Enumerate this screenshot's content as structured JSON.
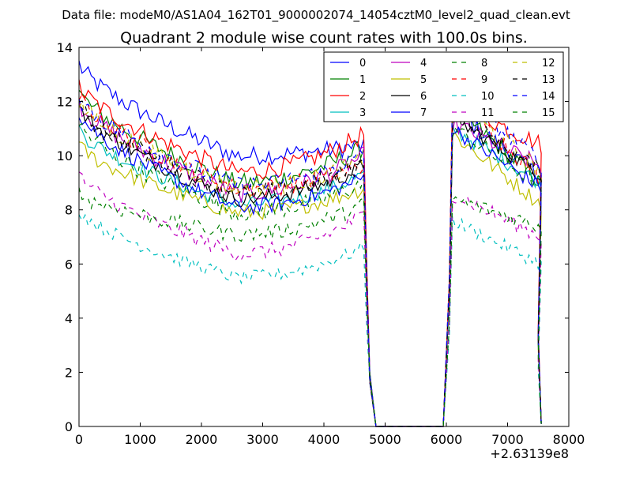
{
  "chart_data": {
    "type": "line",
    "suptitle": "Data file: modeM0/AS1A04_162T01_9000002074_14054cztM0_level2_quad_clean.evt",
    "title": "Quadrant 2 module wise count rates with 100.0s bins.",
    "xlabel": "",
    "ylabel": "",
    "x_offset_label": "+2.63139e8",
    "xlim": [
      0,
      8000
    ],
    "ylim": [
      0,
      14
    ],
    "xticks": [
      0,
      1000,
      2000,
      3000,
      4000,
      5000,
      6000,
      7000,
      8000
    ],
    "yticks": [
      0,
      2,
      4,
      6,
      8,
      10,
      12,
      14
    ],
    "x_tick_labels": [
      "0",
      "1000",
      "2000",
      "3000",
      "4000",
      "5000",
      "6000",
      "7000",
      "8000"
    ],
    "y_tick_labels": [
      "0",
      "2",
      "4",
      "6",
      "8",
      "10",
      "12",
      "14"
    ],
    "grid": false,
    "legend_position": "top-right",
    "legend_columns": 4,
    "bin_size_s": 100,
    "segments": [
      {
        "x_start": 0,
        "x_end": 4650,
        "bins": 47
      },
      {
        "x_start": 4750,
        "x_end": 4850,
        "bins": 2,
        "note": "drop to zero"
      },
      {
        "x_start": 4950,
        "x_end": 5950,
        "bins": 11,
        "note": "zero gap"
      },
      {
        "x_start": 6050,
        "x_end": 7550,
        "bins": 16
      }
    ],
    "series": [
      {
        "name": "0",
        "color": "#0000ff",
        "linestyle": "solid",
        "start": 13.4,
        "mid": 10.0,
        "end": 10.4,
        "seg2_start": 11.7,
        "seg2_end": 9.2,
        "noise": 0.35
      },
      {
        "name": "1",
        "color": "#008000",
        "linestyle": "solid",
        "start": 12.4,
        "mid": 9.0,
        "end": 10.3,
        "seg2_start": 11.8,
        "seg2_end": 9.0,
        "noise": 0.35
      },
      {
        "name": "2",
        "color": "#ff0000",
        "linestyle": "solid",
        "start": 12.6,
        "mid": 9.4,
        "end": 10.8,
        "seg2_start": 12.0,
        "seg2_end": 10.4,
        "noise": 0.35
      },
      {
        "name": "3",
        "color": "#00bfbf",
        "linestyle": "solid",
        "start": 11.0,
        "mid": 8.2,
        "end": 9.3,
        "seg2_start": 11.0,
        "seg2_end": 9.0,
        "noise": 0.3
      },
      {
        "name": "4",
        "color": "#bf00bf",
        "linestyle": "solid",
        "start": 12.0,
        "mid": 8.6,
        "end": 10.0,
        "seg2_start": 11.2,
        "seg2_end": 9.6,
        "noise": 0.35
      },
      {
        "name": "5",
        "color": "#bfbf00",
        "linestyle": "solid",
        "start": 10.4,
        "mid": 7.9,
        "end": 8.8,
        "seg2_start": 10.8,
        "seg2_end": 8.2,
        "noise": 0.3
      },
      {
        "name": "6",
        "color": "#000000",
        "linestyle": "solid",
        "start": 11.8,
        "mid": 8.4,
        "end": 9.6,
        "seg2_start": 11.4,
        "seg2_end": 9.3,
        "noise": 0.3
      },
      {
        "name": "7",
        "color": "#0000ff",
        "linestyle": "solid",
        "start": 11.6,
        "mid": 8.1,
        "end": 9.2,
        "seg2_start": 11.0,
        "seg2_end": 8.8,
        "noise": 0.3
      },
      {
        "name": "8",
        "color": "#008000",
        "linestyle": "dashed",
        "start": 11.2,
        "mid": 7.9,
        "end": 9.0,
        "seg2_start": 11.0,
        "seg2_end": 8.9,
        "noise": 0.35
      },
      {
        "name": "9",
        "color": "#ff0000",
        "linestyle": "dashed",
        "start": 12.2,
        "mid": 8.8,
        "end": 9.6,
        "seg2_start": 12.2,
        "seg2_end": 9.2,
        "noise": 0.35
      },
      {
        "name": "10",
        "color": "#00bfbf",
        "linestyle": "dashed",
        "start": 8.0,
        "mid": 5.5,
        "end": 6.6,
        "seg2_start": 7.6,
        "seg2_end": 6.0,
        "noise": 0.25
      },
      {
        "name": "11",
        "color": "#bf00bf",
        "linestyle": "dashed",
        "start": 9.3,
        "mid": 6.4,
        "end": 7.8,
        "seg2_start": 8.6,
        "seg2_end": 7.0,
        "noise": 0.3
      },
      {
        "name": "12",
        "color": "#bfbf00",
        "linestyle": "dashed",
        "start": 12.0,
        "mid": 8.8,
        "end": 9.8,
        "seg2_start": 12.1,
        "seg2_end": 9.4,
        "noise": 0.35
      },
      {
        "name": "13",
        "color": "#000000",
        "linestyle": "dashed",
        "start": 11.9,
        "mid": 8.6,
        "end": 9.7,
        "seg2_start": 11.6,
        "seg2_end": 9.4,
        "noise": 0.35
      },
      {
        "name": "14",
        "color": "#0000ff",
        "linestyle": "dashed",
        "start": 12.2,
        "mid": 8.9,
        "end": 10.0,
        "seg2_start": 12.4,
        "seg2_end": 9.8,
        "noise": 0.35
      },
      {
        "name": "15",
        "color": "#008000",
        "linestyle": "dashed",
        "start": 8.6,
        "mid": 7.1,
        "end": 8.2,
        "seg2_start": 8.4,
        "seg2_end": 7.4,
        "noise": 0.3
      }
    ]
  }
}
